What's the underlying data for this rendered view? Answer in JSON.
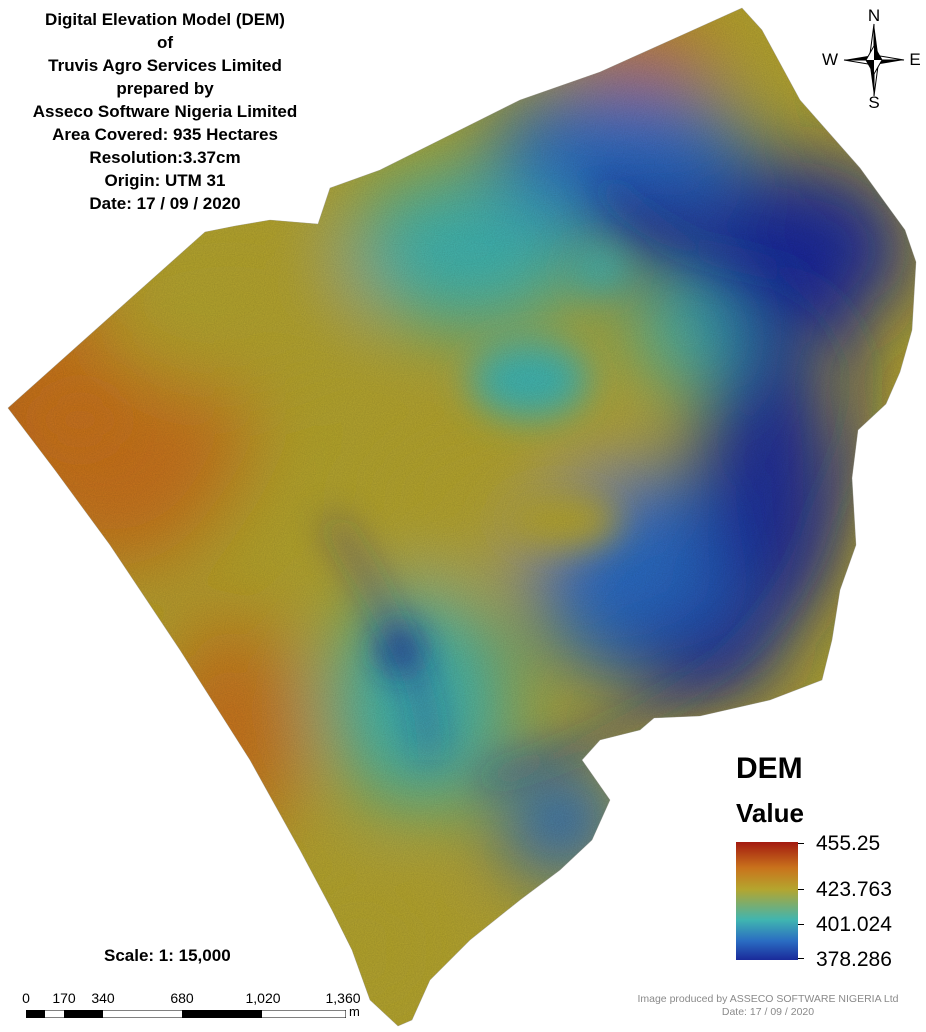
{
  "title_lines": [
    "Digital Elevation Model (DEM)",
    "of",
    "Truvis Agro Services Limited",
    "prepared by",
    "Asseco Software Nigeria Limited",
    "Area Covered: 935 Hectares",
    "Resolution:3.37cm",
    "Origin: UTM 31",
    "Date: 17 / 09 / 2020"
  ],
  "compass": {
    "n": "N",
    "s": "S",
    "e": "E",
    "w": "W"
  },
  "legend": {
    "title": "DEM",
    "subtitle": "Value",
    "ramp_colors": [
      "#a31a10",
      "#c9731c",
      "#b5a52e",
      "#40b5b0",
      "#2a6cc2",
      "#1a2a9a"
    ],
    "values": [
      "455.25",
      "423.763",
      "401.024",
      "378.286"
    ]
  },
  "scale": {
    "ratio_label": "Scale: 1: 15,000",
    "ticks": [
      "0",
      "170",
      "340",
      "680",
      "1,020",
      "1,360"
    ],
    "unit": "m"
  },
  "credit": {
    "line1": "Image produced by ASSECO SOFTWARE NIGERIA Ltd",
    "line2": "Date: 17 / 09 / 2020"
  },
  "colors": {
    "high": "#a31a10",
    "upper": "#c9731c",
    "mid": "#b5a52e",
    "lower": "#40b5b0",
    "low": "#2a6cc2",
    "lowest": "#1a2a9a"
  }
}
